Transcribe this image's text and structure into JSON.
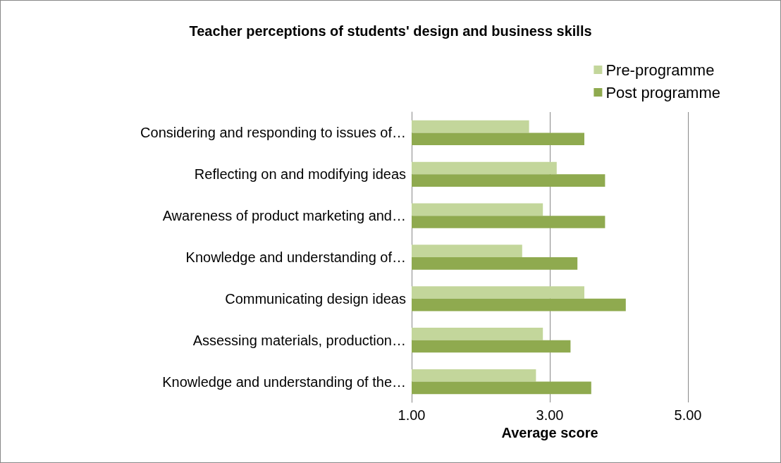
{
  "chart_data": {
    "type": "bar",
    "orientation": "horizontal",
    "title": "Teacher perceptions of students' design and business skills",
    "xlabel": "Average score",
    "categories": [
      "Considering and responding to issues of…",
      "Reflecting on and modifying ideas",
      "Awareness of product marketing and…",
      "Knowledge and understanding of…",
      "Communicating design ideas",
      "Assessing materials, production…",
      "Knowledge and understanding of the…"
    ],
    "series": [
      {
        "name": "Pre-programme",
        "color": "#c3d69b",
        "values": [
          2.7,
          3.1,
          2.9,
          2.6,
          3.5,
          2.9,
          2.8
        ]
      },
      {
        "name": "Post programme",
        "color": "#8faa4f",
        "values": [
          3.5,
          3.8,
          3.8,
          3.4,
          4.1,
          3.3,
          3.6
        ]
      }
    ],
    "xlim": [
      1,
      5
    ],
    "xticks": [
      {
        "value": 1,
        "label": "1.00"
      },
      {
        "value": 3,
        "label": "3.00"
      },
      {
        "value": 5,
        "label": "5.00"
      }
    ],
    "grid": "x",
    "legend": "top right"
  }
}
